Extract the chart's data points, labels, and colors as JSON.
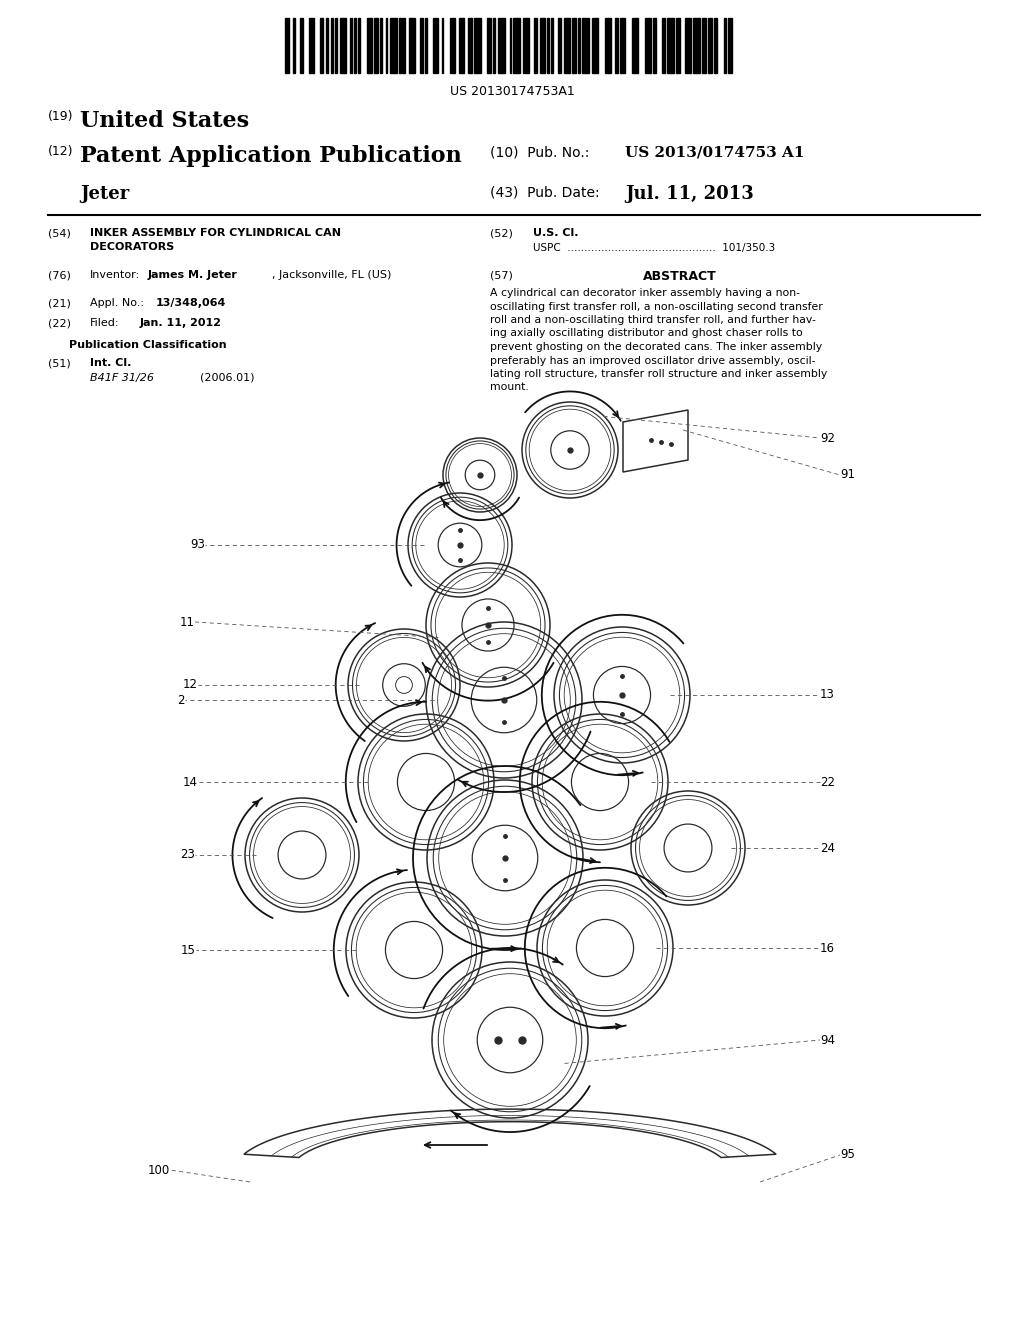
{
  "bg_color": "#ffffff",
  "barcode_text": "US 20130174753A1",
  "header": {
    "line1_num": "(19)",
    "line1_text": "United States",
    "line2_num": "(12)",
    "line2_text": "Patent Application Publication",
    "line3_name": "Jeter",
    "right_pub_label": "(10)  Pub. No.:",
    "right_pub_val": "US 2013/0174753 A1",
    "right_date_label": "(43)  Pub. Date:",
    "right_date_val": "Jul. 11, 2013"
  },
  "fields": {
    "f54_label": "(54)",
    "f54_line1": "INKER ASSEMBLY FOR CYLINDRICAL CAN",
    "f54_line2": "DECORATORS",
    "f52_label": "(52)",
    "f52_title": "U.S. Cl.",
    "f52_uspc_label": "USPC",
    "f52_val": "101/350.3",
    "f76_label": "(76)",
    "f76_pre": "Inventor:",
    "f76_name": "James M. Jeter",
    "f76_post": ", Jacksonville, FL (US)",
    "f57_label": "(57)",
    "f57_title": "ABSTRACT",
    "f57_lines": [
      "A cylindrical can decorator inker assembly having a non-",
      "oscillating first transfer roll, a non-oscillating second transfer",
      "roll and a non-oscillating third transfer roll, and further hav-",
      "ing axially oscillating distributor and ghost chaser rolls to",
      "prevent ghosting on the decorated cans. The inker assembly",
      "preferably has an improved oscillator drive assembly, oscil-",
      "lating roll structure, transfer roll structure and inker assembly",
      "mount."
    ],
    "f21_label": "(21)",
    "f21_pre": "Appl. No.:",
    "f21_val": "13/348,064",
    "f22_label": "(22)",
    "f22_pre": "Filed:",
    "f22_val": "Jan. 11, 2012",
    "pub_class": "Publication Classification",
    "f51_label": "(51)",
    "f51_title": "Int. Cl.",
    "f51_val": "B41F 31/26",
    "f51_year": "(2006.01)"
  }
}
